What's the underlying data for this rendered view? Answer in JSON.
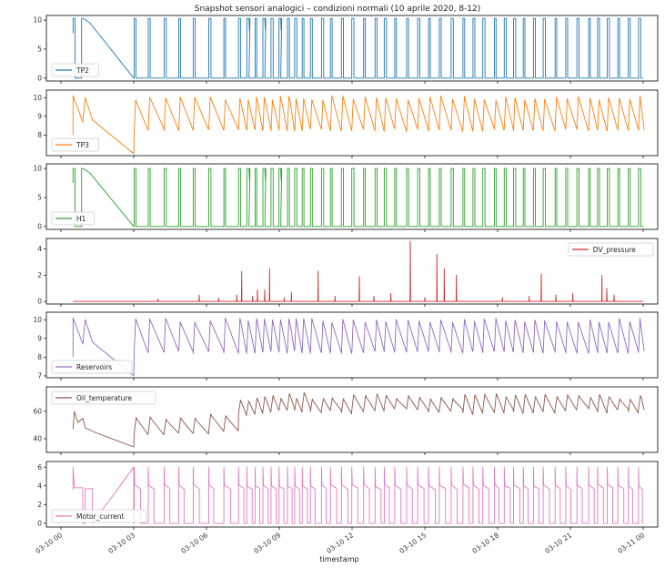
{
  "chart_data": {
    "type": "line",
    "title": "Snapshot sensori analogici – condizioni normali (10 aprile 2020, 8-12)",
    "xlabel": "timestamp",
    "x_ticks": [
      "03-10 00",
      "03-10 03",
      "03-10 06",
      "03-10 09",
      "03-10 12",
      "03-10 15",
      "03-10 18",
      "03-10 21",
      "03-11 00"
    ],
    "x_range_hours": [
      -0.6,
      24.6
    ],
    "panels": [
      {
        "name": "TP2",
        "color": "#1f77b4",
        "ylim": [
          -0.5,
          10.8
        ],
        "yticks": [
          "0",
          "5",
          "10"
        ],
        "ytick_values": [
          0,
          5,
          10
        ],
        "legend_loc": "lower-left",
        "kind": "square",
        "low": 0,
        "high": 10.3
      },
      {
        "name": "TP3",
        "color": "#ff7f0e",
        "ylim": [
          6.9,
          10.4
        ],
        "yticks": [
          "8",
          "9",
          "10"
        ],
        "ytick_values": [
          8,
          9,
          10
        ],
        "legend_loc": "lower-left",
        "kind": "saw",
        "low": 8.2,
        "high": 10.1
      },
      {
        "name": "H1",
        "color": "#2ca02c",
        "ylim": [
          -0.5,
          10.8
        ],
        "yticks": [
          "0",
          "5",
          "10"
        ],
        "ytick_values": [
          0,
          5,
          10
        ],
        "legend_loc": "lower-left",
        "kind": "square",
        "low": 0,
        "high": 10
      },
      {
        "name": "DV_pressure",
        "color": "#d62728",
        "ylim": [
          -0.2,
          4.8
        ],
        "yticks": [
          "0",
          "2",
          "4"
        ],
        "ytick_values": [
          0,
          2,
          4
        ],
        "legend_loc": "upper-right",
        "kind": "spike",
        "low": 0,
        "high": 0
      },
      {
        "name": "Reservoirs",
        "color": "#9467bd",
        "ylim": [
          6.9,
          10.4
        ],
        "yticks": [
          "7",
          "8",
          "9",
          "10"
        ],
        "ytick_values": [
          7,
          8,
          9,
          10
        ],
        "legend_loc": "lower-left",
        "kind": "saw",
        "low": 8.2,
        "high": 10.1
      },
      {
        "name": "Oil_temperature",
        "color": "#8c564b",
        "ylim": [
          30,
          78
        ],
        "yticks": [
          "40",
          "60"
        ],
        "ytick_values": [
          40,
          60
        ],
        "legend_loc": "upper-left",
        "kind": "temp",
        "low": 33,
        "high": 73
      },
      {
        "name": "Motor_current",
        "color": "#e377c2",
        "ylim": [
          -0.4,
          6.6
        ],
        "yticks": [
          "0",
          "2",
          "4",
          "6"
        ],
        "ytick_values": [
          0,
          2,
          4,
          6
        ],
        "legend_loc": "lower-left",
        "kind": "current",
        "low": 0,
        "high": 6
      }
    ]
  }
}
